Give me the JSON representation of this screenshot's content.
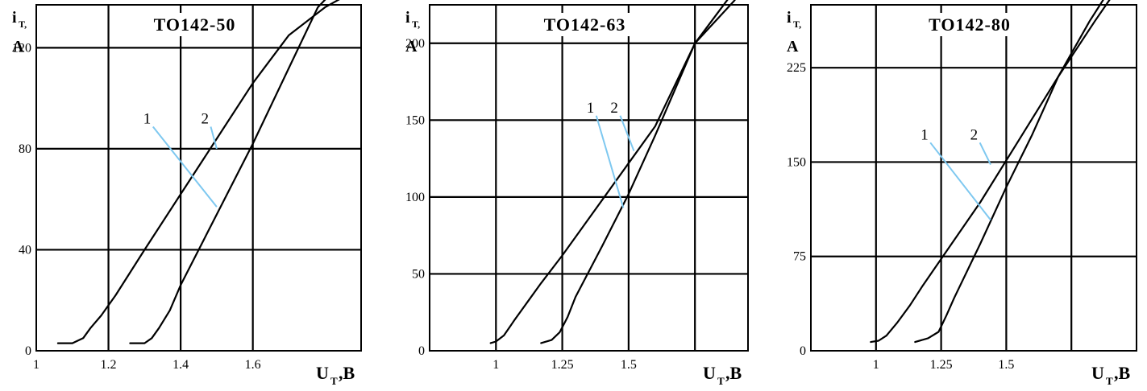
{
  "chart_data": [
    {
      "type": "line",
      "title": "TO142-50",
      "ylabel": "i",
      "ylabel_sub": "T,",
      "ylabel_unit": "A",
      "xlabel": "U",
      "xlabel_sub": "T",
      "xlabel_unit": ",B",
      "xlim": [
        1.0,
        1.9
      ],
      "ylim": [
        0,
        137
      ],
      "xticks": [
        1,
        1.2,
        1.4,
        1.6
      ],
      "xtick_labels": [
        "1",
        "1.2",
        "1.4",
        "1.6"
      ],
      "xgrid": [
        1.2,
        1.4,
        1.6
      ],
      "yticks": [
        0,
        40,
        80,
        120
      ],
      "ytick_labels": [
        "0",
        "40",
        "80",
        "120"
      ],
      "ygrid": [
        40,
        80,
        120
      ],
      "series": [
        {
          "name": "1",
          "x": [
            1.06,
            1.1,
            1.13,
            1.15,
            1.18,
            1.22,
            1.3,
            1.4,
            1.5,
            1.6,
            1.7,
            1.8,
            1.85
          ],
          "y": [
            3,
            3,
            5,
            9,
            14,
            22,
            40,
            62,
            84,
            106,
            125,
            136,
            140
          ]
        },
        {
          "name": "2",
          "x": [
            1.26,
            1.3,
            1.32,
            1.34,
            1.37,
            1.4,
            1.5,
            1.6,
            1.7,
            1.78,
            1.82
          ],
          "y": [
            3,
            3,
            5,
            9,
            16,
            26,
            54,
            82,
            112,
            136,
            142
          ]
        }
      ],
      "labels": [
        {
          "text": "1",
          "at": [
            1.31,
            90
          ],
          "target": [
            1.5,
            57
          ]
        },
        {
          "text": "2",
          "at": [
            1.47,
            90
          ],
          "target": [
            1.5,
            80
          ]
        }
      ],
      "grid": true
    },
    {
      "type": "line",
      "title": "TO142-63",
      "ylabel": "i",
      "ylabel_sub": "T,",
      "ylabel_unit": "A",
      "xlabel": "U",
      "xlabel_sub": "T",
      "xlabel_unit": ",B",
      "xlim": [
        0.75,
        1.95
      ],
      "ylim": [
        0,
        225
      ],
      "xticks": [
        1,
        1.25,
        1.5
      ],
      "xtick_labels": [
        "1",
        "1.25",
        "1.5"
      ],
      "xgrid": [
        1.0,
        1.25,
        1.5,
        1.75
      ],
      "yticks": [
        0,
        50,
        100,
        150,
        200
      ],
      "ytick_labels": [
        "0",
        "50",
        "100",
        "150",
        "200"
      ],
      "ygrid": [
        50,
        100,
        150,
        200
      ],
      "series": [
        {
          "name": "1",
          "x": [
            0.98,
            1.0,
            1.03,
            1.07,
            1.12,
            1.17,
            1.25,
            1.4,
            1.5,
            1.6,
            1.75,
            1.9
          ],
          "y": [
            5,
            6,
            10,
            20,
            32,
            44,
            62,
            98,
            122,
            146,
            200,
            228
          ]
        },
        {
          "name": "2",
          "x": [
            1.17,
            1.21,
            1.24,
            1.27,
            1.3,
            1.4,
            1.5,
            1.6,
            1.75,
            1.88
          ],
          "y": [
            5,
            7,
            12,
            22,
            35,
            68,
            102,
            140,
            200,
            230
          ]
        }
      ],
      "labels": [
        {
          "text": "1",
          "at": [
            1.36,
            155
          ],
          "target": [
            1.48,
            93
          ]
        },
        {
          "text": "2",
          "at": [
            1.45,
            155
          ],
          "target": [
            1.52,
            130
          ]
        }
      ],
      "grid": true
    },
    {
      "type": "line",
      "title": "TO142-80",
      "ylabel": "i",
      "ylabel_sub": "T,",
      "ylabel_unit": "A",
      "xlabel": "U",
      "xlabel_sub": "T",
      "xlabel_unit": ",B",
      "xlim": [
        0.75,
        2.0
      ],
      "ylim": [
        0,
        275
      ],
      "xticks": [
        1,
        1.25,
        1.5
      ],
      "xtick_labels": [
        "1",
        "1.25",
        "1.5"
      ],
      "xgrid": [
        1.0,
        1.25,
        1.5,
        1.75
      ],
      "yticks": [
        0,
        75,
        150,
        225
      ],
      "ytick_labels": [
        "0",
        "75",
        "150",
        "225"
      ],
      "ygrid": [
        75,
        150,
        225
      ],
      "series": [
        {
          "name": "1",
          "x": [
            0.98,
            1.01,
            1.04,
            1.08,
            1.13,
            1.18,
            1.25,
            1.4,
            1.55,
            1.7,
            1.84,
            1.92
          ],
          "y": [
            7,
            8,
            12,
            22,
            36,
            52,
            73,
            118,
            168,
            218,
            262,
            286
          ]
        },
        {
          "name": "2",
          "x": [
            1.15,
            1.2,
            1.24,
            1.27,
            1.3,
            1.4,
            1.5,
            1.6,
            1.7,
            1.82,
            1.9
          ],
          "y": [
            7,
            10,
            15,
            28,
            42,
            85,
            130,
            172,
            218,
            262,
            288
          ]
        }
      ],
      "labels": [
        {
          "text": "1",
          "at": [
            1.19,
            168
          ],
          "target": [
            1.44,
            104
          ]
        },
        {
          "text": "2",
          "at": [
            1.38,
            168
          ],
          "target": [
            1.44,
            148
          ]
        }
      ],
      "grid": true
    }
  ]
}
